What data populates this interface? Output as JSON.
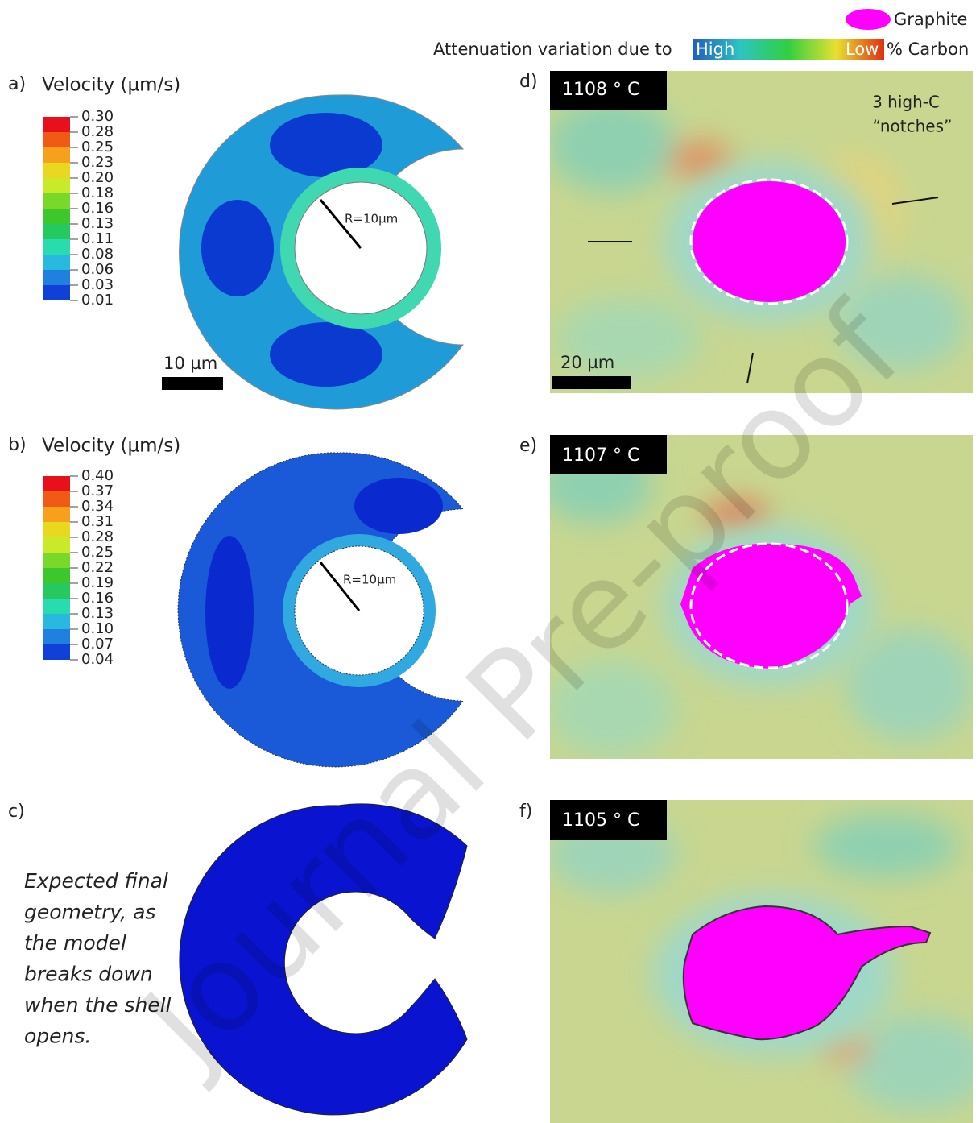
{
  "header": {
    "legend_swatch": "Graphite",
    "scale_prefix": "Attenuation variation due to",
    "scale_high": "High",
    "scale_low": "Low",
    "scale_suffix": "% Carbon"
  },
  "panels": [
    {
      "label": "a)",
      "legend_title": "Velocity (µm/s)",
      "legend_values": [
        "0.30",
        "0.28",
        "0.25",
        "0.23",
        "0.20",
        "0.18",
        "0.16",
        "0.13",
        "0.11",
        "0.08",
        "0.06",
        "0.03",
        "0.01"
      ],
      "radius_label": "R=10µm",
      "scale_bar": "10 µm"
    },
    {
      "label": "b)",
      "legend_title": "Velocity (µm/s)",
      "legend_values": [
        "0.40",
        "0.37",
        "0.34",
        "0.31",
        "0.28",
        "0.25",
        "0.22",
        "0.19",
        "0.16",
        "0.13",
        "0.10",
        "0.07",
        "0.04"
      ],
      "radius_label": "R=10µm"
    },
    {
      "label": "c)",
      "caption": [
        "Expected final",
        "geometry, as",
        "the model",
        "breaks down",
        "when the shell",
        "opens."
      ]
    },
    {
      "label": "d)",
      "temperature": "1108 ° C",
      "annotation": [
        "3 high-C",
        "“notches”"
      ],
      "scale_bar": "20 µm"
    },
    {
      "label": "e)",
      "temperature": "1107 ° C"
    },
    {
      "label": "f)",
      "temperature": "1105 ° C"
    }
  ],
  "watermark": "Journal Pre-proof"
}
